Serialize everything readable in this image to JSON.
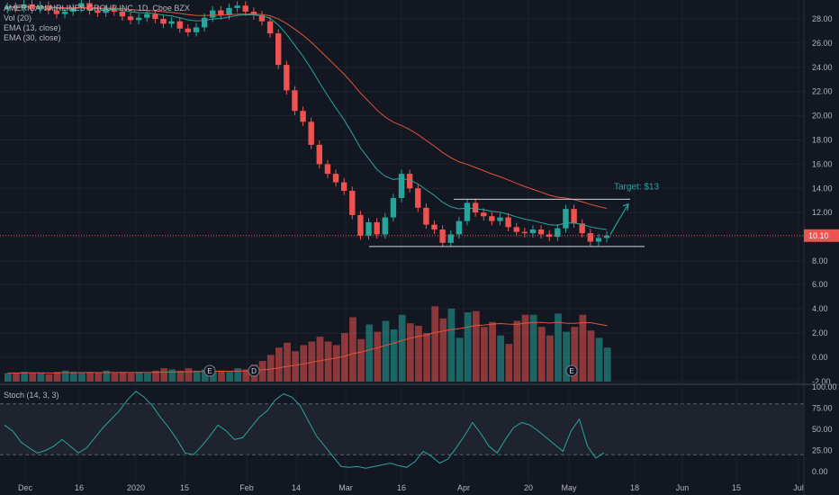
{
  "header": {
    "symbol_line": "AMERICAN AIRLINES GROUP INC, 1D, Cboe BZX",
    "indicators": [
      "Vol (20)",
      "EMA (13, close)",
      "EMA (30, close)"
    ],
    "stoch_label": "Stoch (14, 3, 3)"
  },
  "colors": {
    "background": "#131722",
    "up": "#26a69a",
    "down": "#ef5350",
    "ema13": "#26a69a",
    "ema30": "#e0533a",
    "vol_ma": "#e0533a",
    "stoch": "#26a69a",
    "axis_text": "#b2b5be",
    "grid": "#1e222d",
    "last_price_badge": "#ef5350",
    "annotation": "#26a69a"
  },
  "price_badge": "10.10",
  "annotation_text": "Target: $13",
  "chart_data": [
    {
      "type": "candlestick",
      "title": "AMERICAN AIRLINES GROUP INC, 1D, Cboe BZX",
      "x_tick_labels": [
        "Dec",
        "16",
        "2020",
        "15",
        "Feb",
        "14",
        "Mar",
        "16",
        "Apr",
        "20",
        "May",
        "18",
        "Jun",
        "15",
        "Jul"
      ],
      "y_tick_labels": [
        "28.00",
        "26.00",
        "24.00",
        "22.00",
        "20.00",
        "18.00",
        "16.00",
        "14.00",
        "12.00",
        "10.00",
        "8.00"
      ],
      "ylim": [
        7.5,
        29.5
      ],
      "last_price": 10.1,
      "series_ohlc_close": [
        29.0,
        28.9,
        29.2,
        28.8,
        29.1,
        28.7,
        28.4,
        28.6,
        28.9,
        29.3,
        28.7,
        28.5,
        28.8,
        28.6,
        28.2,
        27.9,
        28.1,
        28.4,
        28.0,
        27.6,
        27.8,
        27.2,
        26.9,
        27.3,
        28.1,
        28.7,
        28.3,
        28.9,
        29.1,
        28.6,
        28.3,
        27.8,
        26.8,
        24.2,
        22.1,
        20.4,
        19.5,
        17.6,
        16.0,
        15.2,
        14.5,
        13.8,
        11.8,
        10.1,
        11.2,
        10.2,
        11.6,
        13.2,
        15.2,
        14.0,
        12.4,
        11.0,
        10.6,
        9.5,
        10.2,
        11.3,
        12.8,
        12.0,
        11.7,
        11.3,
        11.6,
        10.8,
        10.4,
        10.3,
        10.6,
        10.2,
        10.0,
        10.7,
        12.3,
        11.1,
        10.3,
        9.6,
        9.9,
        10.1
      ],
      "ema13": "13-day exponential moving average, teal",
      "ema30": "30-day exponential moving average, orange",
      "range_box": {
        "top": 13.1,
        "bottom": 9.2
      },
      "target_label": "Target: $13"
    },
    {
      "type": "bar",
      "title": "Vol (20)",
      "y_tick_labels": [
        "6.00",
        "4.00",
        "2.00",
        "0.00",
        "-2.00"
      ],
      "ylim": [
        -2,
        7
      ],
      "values_millions_visible": [
        0.3,
        0.3,
        0.4,
        0.3,
        0.3,
        0.2,
        0.4,
        0.5,
        0.4,
        0.3,
        0.4,
        0.3,
        0.5,
        0.3,
        0.4,
        0.3,
        0.4,
        0.3,
        0.5,
        0.7,
        0.6,
        0.5,
        0.7,
        0.5,
        0.6,
        0.4,
        0.5,
        0.4,
        0.7,
        0.6,
        1.0,
        1.3,
        1.8,
        2.4,
        2.8,
        2.1,
        2.6,
        2.9,
        3.3,
        2.9,
        2.6,
        3.6,
        4.9,
        3.1,
        4.3,
        3.7,
        4.6,
        3.9,
        5.1,
        4.4,
        4.2,
        3.6,
        5.8,
        4.8,
        5.6,
        3.2,
        5.3,
        5.4,
        4.1,
        4.5,
        3.4,
        2.7,
        4.6,
        5.1,
        5.1,
        4.1,
        3.4,
        5.2,
        3.7,
        4.1,
        5.1,
        3.8,
        3.2,
        2.4
      ],
      "earnings_markers": [
        "E",
        "D",
        "E"
      ]
    },
    {
      "type": "line",
      "title": "Stoch (14, 3, 3)",
      "y_tick_labels": [
        "100.00",
        "75.00",
        "50.00",
        "25.00",
        "0.00"
      ],
      "ylim": [
        0,
        100
      ],
      "bands": [
        80,
        20
      ],
      "values": [
        55,
        48,
        35,
        28,
        22,
        25,
        30,
        38,
        30,
        22,
        28,
        40,
        52,
        62,
        72,
        85,
        95,
        88,
        78,
        64,
        52,
        38,
        22,
        20,
        30,
        42,
        55,
        48,
        38,
        40,
        52,
        64,
        72,
        85,
        92,
        88,
        78,
        60,
        42,
        30,
        18,
        6,
        5,
        6,
        4,
        6,
        8,
        10,
        7,
        5,
        12,
        24,
        18,
        10,
        15,
        28,
        42,
        58,
        45,
        30,
        22,
        38,
        52,
        58,
        55,
        48,
        40,
        32,
        24,
        48,
        62,
        30,
        16,
        22
      ]
    }
  ]
}
